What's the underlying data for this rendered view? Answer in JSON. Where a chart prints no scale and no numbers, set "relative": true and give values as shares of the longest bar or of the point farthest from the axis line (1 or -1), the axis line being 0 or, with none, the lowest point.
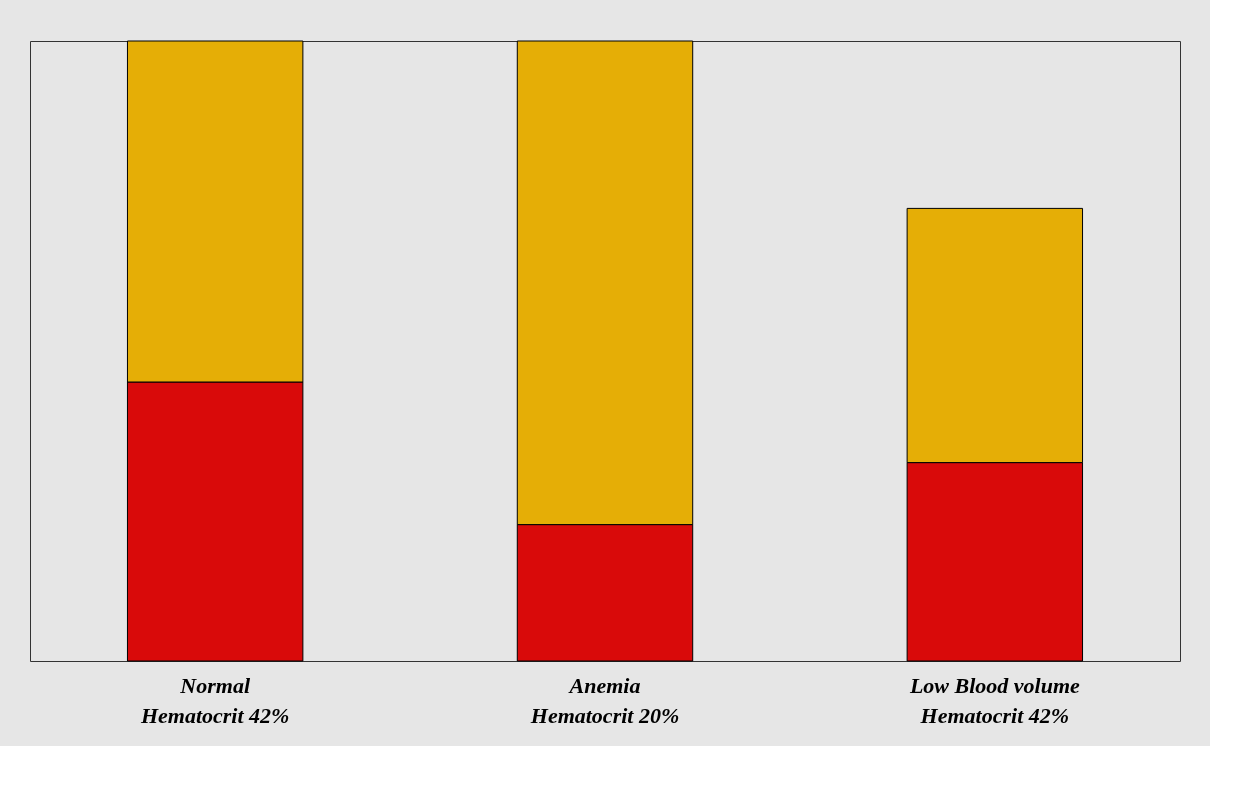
{
  "chart_data": {
    "type": "bar",
    "stacked": true,
    "relative": true,
    "categories": [
      "Normal\nHematocrit 42%",
      "Anemia\nHematocrit 20%",
      "Low Blood volume\nHematocrit 42%"
    ],
    "series": [
      {
        "color": "#d90a0a",
        "values": [
          0.45,
          0.22,
          0.32
        ]
      },
      {
        "color": "#e5ae06",
        "values": [
          0.55,
          0.78,
          0.41
        ]
      }
    ],
    "legend": false
  }
}
